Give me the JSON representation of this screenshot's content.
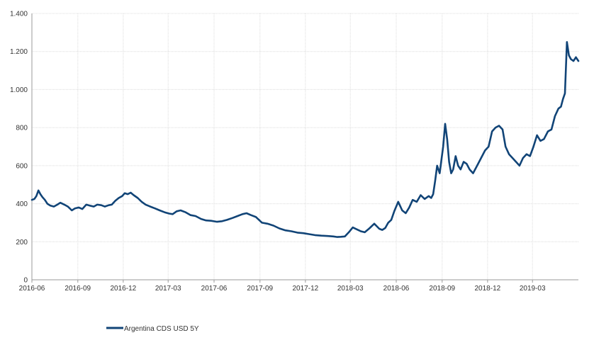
{
  "chart_data": {
    "type": "line",
    "title": "",
    "xlabel": "",
    "ylabel": "",
    "grid": true,
    "legend_position": "bottom-left",
    "line_color": "#114477",
    "ylim": [
      0,
      1400
    ],
    "xlim": [
      "2016-06-01",
      "2019-06-01"
    ],
    "y_ticks": [
      {
        "value": 0,
        "label": "0"
      },
      {
        "value": 200,
        "label": "200"
      },
      {
        "value": 400,
        "label": "400"
      },
      {
        "value": 600,
        "label": "600"
      },
      {
        "value": 800,
        "label": "800"
      },
      {
        "value": 1000,
        "label": "1.000"
      },
      {
        "value": 1200,
        "label": "1.200"
      },
      {
        "value": 1400,
        "label": "1.400"
      }
    ],
    "x_ticks": [
      {
        "value": "2016-06-01",
        "label": "2016-06"
      },
      {
        "value": "2016-09-01",
        "label": "2016-09"
      },
      {
        "value": "2016-12-01",
        "label": "2016-12"
      },
      {
        "value": "2017-03-01",
        "label": "2017-03"
      },
      {
        "value": "2017-06-01",
        "label": "2017-06"
      },
      {
        "value": "2017-09-01",
        "label": "2017-09"
      },
      {
        "value": "2017-12-01",
        "label": "2017-12"
      },
      {
        "value": "2018-03-01",
        "label": "2018-03"
      },
      {
        "value": "2018-06-01",
        "label": "2018-06"
      },
      {
        "value": "2018-09-01",
        "label": "2018-09"
      },
      {
        "value": "2018-12-01",
        "label": "2018-12"
      },
      {
        "value": "2019-03-01",
        "label": "2019-03"
      }
    ],
    "series": [
      {
        "name": "Argentina CDS USD 5Y",
        "x": [
          "2016-06-01",
          "2016-06-06",
          "2016-06-10",
          "2016-06-14",
          "2016-06-18",
          "2016-06-22",
          "2016-06-27",
          "2016-07-02",
          "2016-07-08",
          "2016-07-15",
          "2016-07-22",
          "2016-07-28",
          "2016-08-05",
          "2016-08-12",
          "2016-08-20",
          "2016-08-26",
          "2016-09-03",
          "2016-09-10",
          "2016-09-18",
          "2016-09-25",
          "2016-10-03",
          "2016-10-10",
          "2016-10-18",
          "2016-10-25",
          "2016-11-02",
          "2016-11-08",
          "2016-11-15",
          "2016-11-22",
          "2016-11-29",
          "2016-12-04",
          "2016-12-10",
          "2016-12-16",
          "2016-12-22",
          "2016-12-30",
          "2017-01-07",
          "2017-01-15",
          "2017-01-24",
          "2017-02-03",
          "2017-02-12",
          "2017-02-22",
          "2017-03-03",
          "2017-03-10",
          "2017-03-18",
          "2017-03-26",
          "2017-04-05",
          "2017-04-15",
          "2017-04-25",
          "2017-05-06",
          "2017-05-16",
          "2017-05-26",
          "2017-06-07",
          "2017-06-17",
          "2017-06-27",
          "2017-07-08",
          "2017-07-18",
          "2017-07-28",
          "2017-08-05",
          "2017-08-14",
          "2017-08-24",
          "2017-09-05",
          "2017-09-16",
          "2017-09-28",
          "2017-10-10",
          "2017-10-22",
          "2017-11-03",
          "2017-11-15",
          "2017-11-27",
          "2017-12-08",
          "2017-12-20",
          "2018-01-02",
          "2018-01-15",
          "2018-01-26",
          "2018-02-03",
          "2018-02-10",
          "2018-02-18",
          "2018-02-26",
          "2018-03-06",
          "2018-03-14",
          "2018-03-22",
          "2018-03-30",
          "2018-04-08",
          "2018-04-18",
          "2018-04-28",
          "2018-05-04",
          "2018-05-10",
          "2018-05-16",
          "2018-05-22",
          "2018-05-28",
          "2018-06-05",
          "2018-06-13",
          "2018-06-20",
          "2018-06-27",
          "2018-07-04",
          "2018-07-12",
          "2018-07-20",
          "2018-07-28",
          "2018-08-05",
          "2018-08-10",
          "2018-08-14",
          "2018-08-18",
          "2018-08-22",
          "2018-08-27",
          "2018-08-31",
          "2018-09-03",
          "2018-09-07",
          "2018-09-11",
          "2018-09-15",
          "2018-09-19",
          "2018-09-23",
          "2018-09-28",
          "2018-10-03",
          "2018-10-08",
          "2018-10-14",
          "2018-10-20",
          "2018-10-26",
          "2018-11-02",
          "2018-11-10",
          "2018-11-18",
          "2018-11-26",
          "2018-12-03",
          "2018-12-10",
          "2018-12-17",
          "2018-12-24",
          "2018-12-31",
          "2019-01-06",
          "2019-01-13",
          "2019-01-20",
          "2019-01-27",
          "2019-02-03",
          "2019-02-10",
          "2019-02-17",
          "2019-02-24",
          "2019-03-03",
          "2019-03-10",
          "2019-03-17",
          "2019-03-24",
          "2019-04-01",
          "2019-04-08",
          "2019-04-15",
          "2019-04-22",
          "2019-04-27",
          "2019-05-01",
          "2019-05-05",
          "2019-05-09",
          "2019-05-13",
          "2019-05-17",
          "2019-05-22",
          "2019-05-27",
          "2019-06-01"
        ],
        "values": [
          420,
          425,
          440,
          470,
          450,
          435,
          420,
          400,
          390,
          385,
          395,
          405,
          395,
          385,
          365,
          375,
          380,
          372,
          395,
          390,
          385,
          395,
          392,
          385,
          392,
          395,
          415,
          430,
          440,
          455,
          450,
          458,
          445,
          430,
          410,
          395,
          385,
          375,
          365,
          355,
          348,
          345,
          360,
          365,
          355,
          340,
          335,
          320,
          312,
          310,
          305,
          308,
          315,
          325,
          335,
          345,
          350,
          340,
          330,
          300,
          295,
          285,
          270,
          260,
          255,
          248,
          245,
          240,
          235,
          232,
          230,
          228,
          225,
          226,
          228,
          250,
          275,
          265,
          255,
          250,
          270,
          295,
          268,
          262,
          272,
          300,
          315,
          360,
          410,
          365,
          350,
          380,
          420,
          410,
          445,
          425,
          440,
          430,
          450,
          520,
          600,
          560,
          640,
          700,
          820,
          740,
          620,
          560,
          580,
          650,
          600,
          580,
          620,
          610,
          580,
          560,
          600,
          640,
          680,
          700,
          780,
          800,
          810,
          790,
          700,
          660,
          640,
          620,
          600,
          640,
          660,
          650,
          700,
          760,
          730,
          740,
          780,
          790,
          860,
          900,
          910,
          950,
          980,
          1250,
          1180,
          1160,
          1150,
          1170,
          1150
        ]
      }
    ]
  }
}
